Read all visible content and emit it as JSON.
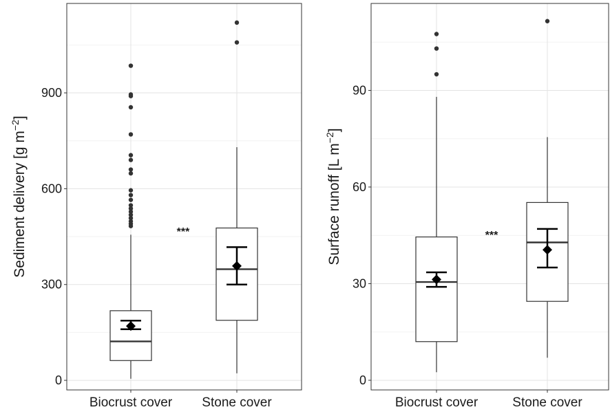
{
  "chart_data": [
    {
      "type": "box",
      "categories": [
        "Biocrust cover",
        "Stone cover"
      ],
      "ylabel": "Sediment delivery [g m",
      "ylabel_sup": "−2",
      "ylabel_close": "]",
      "ylim": [
        -30,
        1180
      ],
      "yticks": [
        0,
        300,
        600,
        900
      ],
      "grid": true,
      "annotation": "***",
      "boxes": [
        {
          "name": "Biocrust cover",
          "whisker_low": 5,
          "q1": 62,
          "median": 122,
          "q3": 218,
          "whisker_high": 456,
          "outliers": [
            985,
            895,
            890,
            855,
            770,
            705,
            690,
            660,
            648,
            595,
            580,
            565,
            548,
            538,
            528,
            518,
            508,
            498,
            490,
            483
          ],
          "mean": 170,
          "ci": [
            160,
            187
          ]
        },
        {
          "name": "Stone cover",
          "whisker_low": 22,
          "q1": 188,
          "median": 348,
          "q3": 477,
          "whisker_high": 730,
          "outliers": [
            1120,
            1058
          ],
          "mean": 358,
          "ci": [
            300,
            417
          ]
        }
      ]
    },
    {
      "type": "box",
      "categories": [
        "Biocrust cover",
        "Stone cover"
      ],
      "ylabel": "Surface runoff [L m",
      "ylabel_sup": "−2",
      "ylabel_close": "]",
      "ylim": [
        -3,
        117
      ],
      "yticks": [
        0,
        30,
        60,
        90
      ],
      "grid": true,
      "annotation": "***",
      "boxes": [
        {
          "name": "Biocrust cover",
          "whisker_low": 2.5,
          "q1": 12,
          "median": 30.5,
          "q3": 44.5,
          "whisker_high": 88,
          "outliers": [
            107.5,
            103,
            95
          ],
          "mean": 31.3,
          "ci": [
            29,
            33.5
          ]
        },
        {
          "name": "Stone cover",
          "whisker_low": 7,
          "q1": 24.5,
          "median": 42.8,
          "q3": 55.2,
          "whisker_high": 75.5,
          "outliers": [
            111.5
          ],
          "mean": 40.5,
          "ci": [
            35,
            47
          ]
        }
      ]
    }
  ]
}
